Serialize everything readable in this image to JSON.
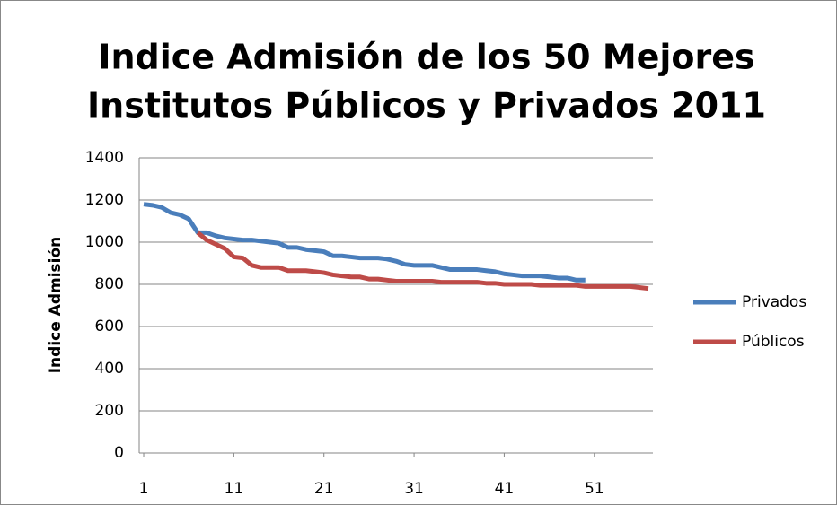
{
  "chart_data": {
    "type": "line",
    "title": [
      "Indice Admisión de los 50 Mejores",
      "Institutos Públicos y Privados 2011"
    ],
    "y_label": "Indice Admisión",
    "x": [
      1,
      2,
      3,
      4,
      5,
      6,
      7,
      8,
      9,
      10,
      11,
      12,
      13,
      14,
      15,
      16,
      17,
      18,
      19,
      20,
      21,
      22,
      23,
      24,
      25,
      26,
      27,
      28,
      29,
      30,
      31,
      32,
      33,
      34,
      35,
      36,
      37,
      38,
      39,
      40,
      41,
      42,
      43,
      44,
      45,
      46,
      47,
      48,
      49,
      50,
      51,
      52,
      53,
      54,
      55,
      56,
      57
    ],
    "xlim": [
      0.5,
      57.5
    ],
    "xticks": [
      1,
      11,
      21,
      31,
      41,
      51
    ],
    "ylim": [
      0,
      1400
    ],
    "yticks": [
      0,
      200,
      400,
      600,
      800,
      1000,
      1200,
      1400
    ],
    "grid": true,
    "legend": "right",
    "series": [
      {
        "name": "Privados",
        "color": "#4a7ebb",
        "values": [
          1180,
          1175,
          1165,
          1140,
          1130,
          1110,
          1045,
          1045,
          1030,
          1020,
          1015,
          1010,
          1010,
          1005,
          1000,
          995,
          975,
          975,
          965,
          960,
          955,
          935,
          935,
          930,
          925,
          925,
          925,
          920,
          910,
          895,
          890,
          890,
          890,
          880,
          870,
          870,
          870,
          870,
          865,
          860,
          850,
          845,
          840,
          840,
          840,
          835,
          830,
          830,
          820,
          820,
          null,
          null,
          null,
          null,
          null,
          null,
          null
        ]
      },
      {
        "name": "Públicos",
        "color": "#be4b48",
        "values": [
          null,
          null,
          null,
          null,
          null,
          null,
          1045,
          1010,
          990,
          970,
          930,
          925,
          890,
          880,
          880,
          880,
          865,
          865,
          865,
          860,
          855,
          845,
          840,
          835,
          835,
          825,
          825,
          820,
          815,
          815,
          815,
          815,
          815,
          810,
          810,
          810,
          810,
          810,
          805,
          805,
          800,
          800,
          800,
          800,
          795,
          795,
          795,
          795,
          795,
          790,
          790,
          790,
          790,
          790,
          790,
          785,
          780
        ]
      }
    ]
  }
}
